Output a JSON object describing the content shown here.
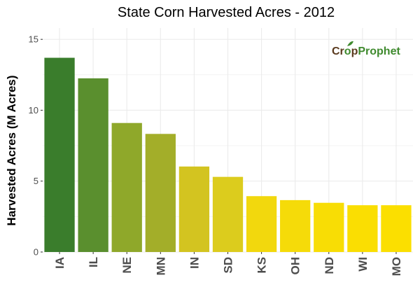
{
  "chart_data": {
    "type": "bar",
    "title": "State Corn Harvested Acres - 2012",
    "xlabel": "",
    "ylabel": "Harvested Acres (M Acres)",
    "categories": [
      "IA",
      "IL",
      "NE",
      "MN",
      "IN",
      "SD",
      "KS",
      "OH",
      "ND",
      "WI",
      "MO"
    ],
    "values": [
      13.7,
      12.25,
      9.1,
      8.33,
      6.03,
      5.3,
      3.94,
      3.66,
      3.47,
      3.3,
      3.3
    ],
    "ylim": [
      0,
      15.8
    ],
    "yticks": [
      0,
      5,
      10,
      15
    ],
    "ytick_labels": [
      "0",
      "5",
      "10",
      "15"
    ],
    "grid": true,
    "bar_colors": [
      "#3a7d2c",
      "#5a8f2e",
      "#8fa82a",
      "#a3ae29",
      "#d3c420",
      "#dccc1d",
      "#f2d80d",
      "#f5db09",
      "#f8dd05",
      "#fade02",
      "#fbdf00"
    ],
    "gridline_color": "#ebebeb"
  },
  "logo": {
    "part1": "Cr",
    "part2": "p",
    "part3": "Prophet",
    "dark_color": "#5a3a1e",
    "green_color": "#3f8a2e"
  }
}
